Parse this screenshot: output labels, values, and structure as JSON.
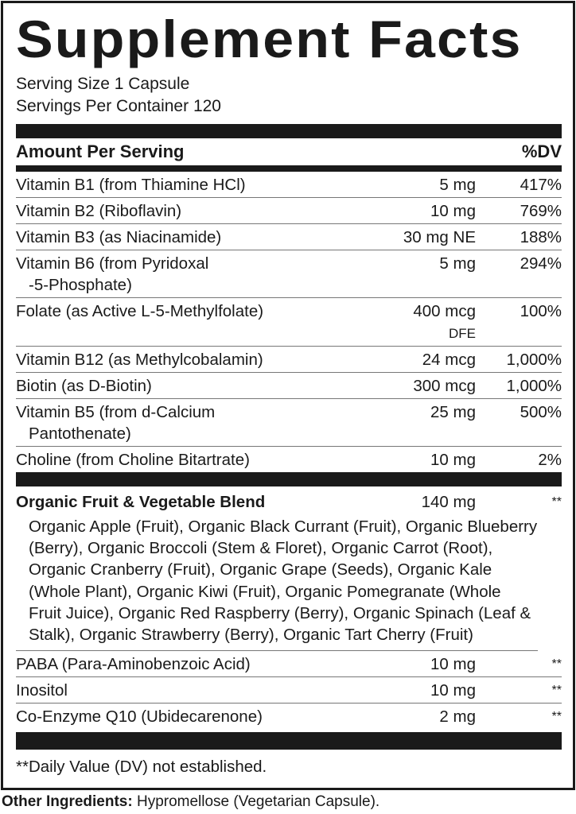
{
  "title": "Supplement Facts",
  "serving_size": "Serving Size 1 Capsule",
  "servings_per_container": "Servings Per Container 120",
  "header": {
    "amount": "Amount Per Serving",
    "dv": "%DV"
  },
  "nutrients": [
    {
      "name": "Vitamin B1 (from Thiamine HCl)",
      "amount": "5 mg",
      "dv": "417%"
    },
    {
      "name": "Vitamin B2 (Riboflavin)",
      "amount": "10 mg",
      "dv": "769%"
    },
    {
      "name": "Vitamin B3 (as Niacinamide)",
      "amount": "30 mg NE",
      "dv": "188%"
    },
    {
      "name": "Vitamin B6 (from Pyridoxal",
      "name2": "-5-Phosphate)",
      "amount": "5 mg",
      "dv": "294%"
    },
    {
      "name": "Folate (as Active L-5-Methylfolate)",
      "amount": "400 mcg",
      "amount2": "DFE",
      "dv": "100%"
    },
    {
      "name": "Vitamin B12 (as Methylcobalamin)",
      "amount": "24 mcg",
      "dv": "1,000%"
    },
    {
      "name": "Biotin (as D-Biotin)",
      "amount": "300 mcg",
      "dv": "1,000%"
    },
    {
      "name": "Vitamin B5 (from d-Calcium",
      "name2": "Pantothenate)",
      "amount": "25 mg",
      "dv": "500%"
    },
    {
      "name": "Choline (from Choline Bitartrate)",
      "amount": "10 mg",
      "dv": "2%"
    }
  ],
  "blend": {
    "name": "Organic Fruit & Vegetable Blend",
    "amount": "140 mg",
    "dv": "**",
    "ingredients": "Organic Apple (Fruit), Organic Black Currant (Fruit), Organic Blueberry (Berry), Organic Broccoli (Stem & Floret), Organic Carrot (Root), Organic Cranberry (Fruit), Organic Grape (Seeds), Organic Kale (Whole Plant), Organic Kiwi (Fruit), Organic Pomegranate (Whole Fruit Juice), Organic Red Raspberry (Berry), Organic Spinach (Leaf & Stalk), Organic Strawberry (Berry), Organic Tart Cherry (Fruit)"
  },
  "others": [
    {
      "name": "PABA (Para-Aminobenzoic Acid)",
      "amount": "10 mg",
      "dv": "**"
    },
    {
      "name": "Inositol",
      "amount": "10 mg",
      "dv": "**"
    },
    {
      "name": "Co-Enzyme Q10 (Ubidecarenone)",
      "amount": "2 mg",
      "dv": "**"
    }
  ],
  "footnote": "**Daily Value (DV) not established.",
  "other_ingredients": {
    "label": "Other Ingredients:",
    "value": " Hypromellose (Vegetarian Capsule)."
  }
}
